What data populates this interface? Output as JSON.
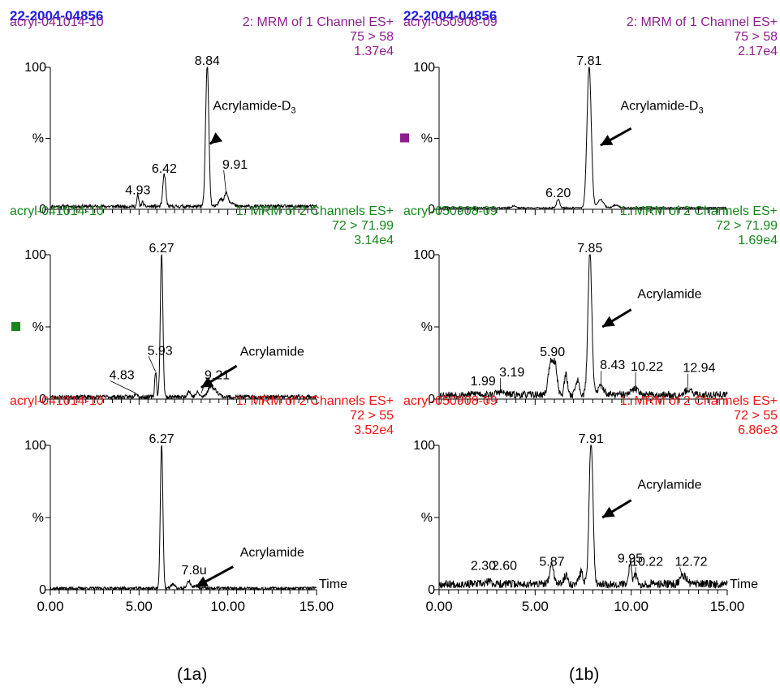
{
  "colors": {
    "header": "#1a1ae6",
    "purple": "#8e1e8e",
    "green": "#16861c",
    "red": "#f01414",
    "trace": "#000000"
  },
  "columns": [
    {
      "header": "22-2004-04856",
      "caption": "(1a)"
    },
    {
      "header": "22-2004-04856",
      "caption": "(1b)"
    }
  ],
  "chart_data": [
    {
      "type": "line",
      "column": 0,
      "sample": "acryl-041014-10",
      "function": "2: MRM of 1 Channel ES+",
      "transition": "75 > 58",
      "intensity": "1.37e4",
      "colorKey": "purple",
      "ytop": "100",
      "ymid": "%",
      "ybot": "0",
      "ylim": [
        0,
        100
      ],
      "xlim": [
        0,
        15
      ],
      "baseline": 2,
      "noise": 1.2,
      "seed": 11,
      "peaks": [
        [
          8.84,
          100,
          0.09
        ],
        [
          6.42,
          23,
          0.08
        ],
        [
          4.93,
          8,
          0.05
        ],
        [
          5.2,
          3,
          0.06
        ],
        [
          9.6,
          6,
          0.1
        ],
        [
          9.91,
          10,
          0.1
        ],
        [
          10.2,
          3,
          0.12
        ]
      ],
      "peakLabels": [
        {
          "x": 8.84,
          "y": 100,
          "text": "8.84"
        },
        {
          "x": 6.42,
          "y": 24,
          "text": "6.42"
        },
        {
          "x": 4.93,
          "y": 9,
          "text": "4.93"
        },
        {
          "x": 9.91,
          "y": 11,
          "text": "9.91",
          "dx": 0.5,
          "dy": 16,
          "leader": true
        }
      ],
      "annotation": {
        "text": "Acrylamide-D",
        "sub": "3",
        "x": 11.5,
        "y": 70,
        "ax": 9.4,
        "ay": 50,
        "hx": 9.0,
        "hy": 46
      },
      "xticks": null,
      "timeLabel": null
    },
    {
      "type": "line",
      "column": 0,
      "sample": "acryl-041014-10",
      "function": "1: MRM of 2 Channels ES+",
      "transition": "72 > 71.99",
      "intensity": "3.14e4",
      "colorKey": "green",
      "ytop": "100",
      "ymid": "%",
      "ybot": "0",
      "ylim": [
        0,
        100
      ],
      "xlim": [
        0,
        15
      ],
      "baseline": 1.5,
      "noise": 1.4,
      "seed": 23,
      "marker": true,
      "peaks": [
        [
          6.27,
          100,
          0.07
        ],
        [
          5.93,
          18,
          0.05
        ],
        [
          4.83,
          3,
          0.08
        ],
        [
          7.8,
          4,
          0.1
        ],
        [
          9.0,
          6,
          0.15
        ],
        [
          9.3,
          4,
          0.2
        ],
        [
          8.3,
          3,
          0.1
        ]
      ],
      "peakLabels": [
        {
          "x": 6.27,
          "y": 100,
          "text": "6.27"
        },
        {
          "x": 5.93,
          "y": 19,
          "text": "5.93",
          "dx": 0.25,
          "dy": 10,
          "leader": true
        },
        {
          "x": 4.83,
          "y": 4,
          "text": "4.83",
          "dx": -0.8,
          "dy": 8,
          "leader": true
        },
        {
          "x": 8.5,
          "y": 4,
          "text": "9.21",
          "dx": 0.9,
          "dy": 8,
          "leader": true
        }
      ],
      "annotation": {
        "text": "Acrylamide",
        "x": 12.5,
        "y": 30,
        "ax": 10.5,
        "ay": 23,
        "hx": 8.5,
        "hy": 8
      },
      "xticks": null,
      "timeLabel": null
    },
    {
      "type": "line",
      "column": 0,
      "sample": "acryl-041014-10",
      "function": "1: MRM of 2 Channels ES+",
      "transition": "72 > 55",
      "intensity": "3.52e4",
      "colorKey": "red",
      "ytop": "100",
      "ymid": "%",
      "ybot": "0",
      "ylim": [
        0,
        100
      ],
      "xlim": [
        0,
        15
      ],
      "baseline": 1,
      "noise": 1.0,
      "seed": 37,
      "peaks": [
        [
          6.27,
          100,
          0.07
        ],
        [
          6.9,
          3,
          0.1
        ],
        [
          7.8,
          5,
          0.1
        ],
        [
          8.2,
          2,
          0.1
        ]
      ],
      "peakLabels": [
        {
          "x": 6.27,
          "y": 100,
          "text": "6.27"
        },
        {
          "x": 7.8,
          "y": 6,
          "text": "7.8u",
          "dx": 0.3,
          "dy": 3,
          "leader": false
        }
      ],
      "annotation": {
        "text": "Acrylamide",
        "x": 12.5,
        "y": 23,
        "ax": 10.3,
        "ay": 16,
        "hx": 8.2,
        "hy": 2
      },
      "xticks": [
        "0.00",
        "5.00",
        "10.00",
        "15.00"
      ],
      "timeLabel": "Time"
    },
    {
      "type": "line",
      "column": 1,
      "sample": "acryl-050908-09",
      "function": "2: MRM of 1 Channel ES+",
      "transition": "75 > 58",
      "intensity": "2.17e4",
      "colorKey": "purple",
      "ytop": "100",
      "ymid": "%",
      "ybot": "0",
      "ylim": [
        0,
        100
      ],
      "xlim": [
        0,
        15
      ],
      "baseline": 1,
      "noise": 0.5,
      "seed": 41,
      "marker": true,
      "peaks": [
        [
          7.81,
          100,
          0.11
        ],
        [
          6.2,
          6,
          0.08
        ],
        [
          3.9,
          1.5,
          0.1
        ],
        [
          8.4,
          6,
          0.15
        ],
        [
          9.2,
          2,
          0.15
        ]
      ],
      "peakLabels": [
        {
          "x": 7.81,
          "y": 100,
          "text": "7.81"
        },
        {
          "x": 6.2,
          "y": 7,
          "text": "6.20"
        }
      ],
      "annotation": {
        "text": "Acrylamide-D",
        "sub": "3",
        "x": 11.6,
        "y": 70,
        "ax": 10.0,
        "ay": 57,
        "hx": 8.4,
        "hy": 45
      },
      "xticks": null,
      "timeLabel": null
    },
    {
      "type": "line",
      "column": 1,
      "sample": "acryl-050908-09",
      "function": "1: MRM of 2 Channels ES+",
      "transition": "72 > 71.99",
      "intensity": "1.69e4",
      "colorKey": "green",
      "ytop": "100",
      "ymid": "%",
      "ybot": "0",
      "ylim": [
        0,
        100
      ],
      "xlim": [
        0,
        15
      ],
      "baseline": 3,
      "noise": 2.5,
      "seed": 53,
      "peaks": [
        [
          7.85,
          100,
          0.1
        ],
        [
          5.8,
          22,
          0.12
        ],
        [
          6.05,
          20,
          0.1
        ],
        [
          6.6,
          14,
          0.08
        ],
        [
          7.2,
          10,
          0.1
        ],
        [
          8.43,
          6,
          0.15
        ],
        [
          10.22,
          4,
          0.2
        ],
        [
          12.94,
          3,
          0.2
        ],
        [
          3.19,
          2,
          0.2
        ],
        [
          1.99,
          1,
          0.2
        ]
      ],
      "peakLabels": [
        {
          "x": 7.85,
          "y": 100,
          "text": "7.85"
        },
        {
          "x": 5.9,
          "y": 28,
          "text": "5.90"
        },
        {
          "x": 8.43,
          "y": 7,
          "text": "8.43",
          "dx": 0.6,
          "dy": 12,
          "leader": true
        },
        {
          "x": 10.22,
          "y": 6,
          "text": "10.22",
          "dx": 0.6,
          "dy": 12,
          "leader": true
        },
        {
          "x": 12.94,
          "y": 5,
          "text": "12.94",
          "dx": 0.6,
          "dy": 12,
          "leader": true
        },
        {
          "x": 3.19,
          "y": 4,
          "text": "3.19",
          "dx": 0.6,
          "dy": 10,
          "leader": true
        },
        {
          "x": 1.99,
          "y": 3,
          "text": "1.99",
          "dx": 0.3,
          "dy": 5,
          "leader": false
        }
      ],
      "annotation": {
        "text": "Acrylamide",
        "x": 12.0,
        "y": 70,
        "ax": 10.0,
        "ay": 62,
        "hx": 8.5,
        "hy": 50
      },
      "xticks": null,
      "timeLabel": null
    },
    {
      "type": "line",
      "column": 1,
      "sample": "acryl-050908-09",
      "function": "1: MRM of 2 Channels ES+",
      "transition": "72 > 55",
      "intensity": "6.86e3",
      "colorKey": "red",
      "ytop": "100",
      "ymid": "%",
      "ybot": "0",
      "ylim": [
        0,
        100
      ],
      "xlim": [
        0,
        15
      ],
      "baseline": 4,
      "noise": 2.8,
      "seed": 67,
      "peaks": [
        [
          7.91,
          100,
          0.1
        ],
        [
          5.87,
          14,
          0.1
        ],
        [
          6.6,
          6,
          0.1
        ],
        [
          7.4,
          8,
          0.1
        ],
        [
          9.95,
          16,
          0.06
        ],
        [
          10.22,
          6,
          0.1
        ],
        [
          12.72,
          6,
          0.15
        ],
        [
          2.6,
          2,
          0.1
        ]
      ],
      "peakLabels": [
        {
          "x": 7.91,
          "y": 100,
          "text": "7.91"
        },
        {
          "x": 5.87,
          "y": 15,
          "text": "5.87"
        },
        {
          "x": 9.95,
          "y": 17,
          "text": "9.95"
        },
        {
          "x": 10.22,
          "y": 7,
          "text": "10.22",
          "dx": 0.6,
          "dy": 8,
          "leader": true
        },
        {
          "x": 12.72,
          "y": 7,
          "text": "12.72",
          "dx": 0.4,
          "dy": 8,
          "leader": true
        },
        {
          "x": 2.3,
          "y": 4,
          "text": "2.30",
          "dx": 0.0,
          "dy": 8,
          "leader": false
        },
        {
          "x": 2.6,
          "y": 4,
          "text": "2.60",
          "dx": 0.8,
          "dy": 8,
          "leader": false
        }
      ],
      "annotation": {
        "text": "Acrylamide",
        "x": 12.0,
        "y": 70,
        "ax": 10.0,
        "ay": 62,
        "hx": 8.5,
        "hy": 50
      },
      "xticks": [
        "0.00",
        "5.00",
        "10.00",
        "15.00"
      ],
      "timeLabel": "Time"
    }
  ]
}
